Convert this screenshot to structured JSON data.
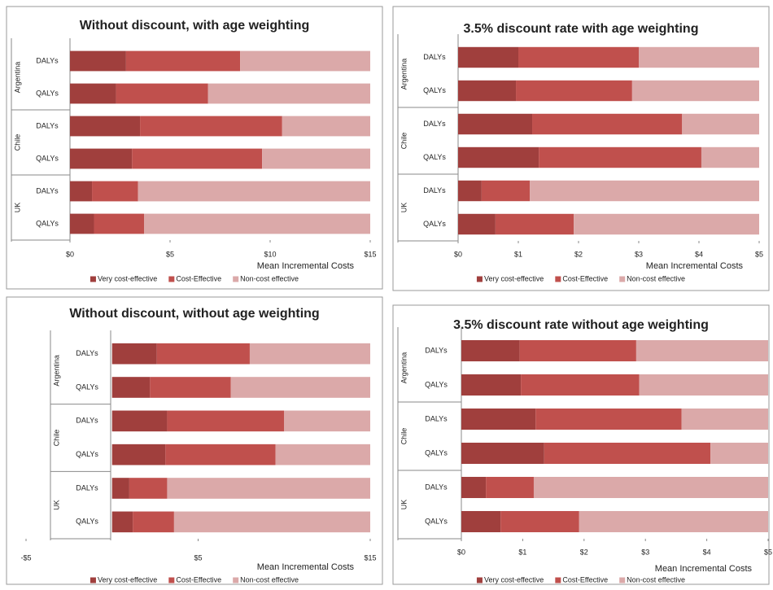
{
  "chart_data": [
    {
      "type": "bar",
      "orientation": "horizontal",
      "stacked": true,
      "title": "Without discount, with age weighting",
      "groups": [
        "Argentina",
        "Chile",
        "UK"
      ],
      "categories": [
        "DALYs",
        "QALYs",
        "DALYs",
        "QALYs",
        "DALYs",
        "QALYs"
      ],
      "series": [
        {
          "name": "Very cost-effective",
          "color": "#a03f3d",
          "values": [
            2.8,
            2.3,
            3.5,
            3.1,
            1.1,
            1.2
          ]
        },
        {
          "name": "Cost-Effective",
          "color": "#c0504d",
          "values": [
            5.7,
            4.6,
            7.1,
            6.5,
            2.3,
            2.5
          ]
        },
        {
          "name": "Non-cost effective",
          "color": "#dba9a9",
          "values": [
            6.5,
            8.1,
            4.4,
            5.4,
            11.6,
            11.3
          ]
        }
      ],
      "xlabel": "Mean Incremental Costs",
      "xlim": [
        0,
        15
      ],
      "xticks": [
        {
          "value": 0,
          "label": "$0"
        },
        {
          "value": 5,
          "label": "$5"
        },
        {
          "value": 10,
          "label": "$10"
        },
        {
          "value": 15,
          "label": "$15"
        }
      ],
      "grid": false,
      "legend": "bottom"
    },
    {
      "type": "bar",
      "orientation": "horizontal",
      "stacked": true,
      "title": "3.5%  discount rate with age weighting",
      "groups": [
        "Argentina",
        "Chile",
        "UK"
      ],
      "categories": [
        "DALYs",
        "QALYs",
        "DALYs",
        "QALYs",
        "DALYs",
        "QALYs"
      ],
      "series": [
        {
          "name": "Very cost-effective",
          "color": "#a03f3d",
          "values": [
            1.0,
            0.96,
            1.23,
            1.34,
            0.39,
            0.62
          ]
        },
        {
          "name": "Cost-Effective",
          "color": "#c0504d",
          "values": [
            2.0,
            1.93,
            2.49,
            2.7,
            0.8,
            1.3
          ]
        },
        {
          "name": "Non-cost effective",
          "color": "#dba9a9",
          "values": [
            2.0,
            2.11,
            1.28,
            0.96,
            3.81,
            3.08
          ]
        }
      ],
      "xlabel": "Mean Incremental Costs",
      "xlim": [
        0,
        5
      ],
      "xticks": [
        {
          "value": 0,
          "label": "$0"
        },
        {
          "value": 1,
          "label": "$1"
        },
        {
          "value": 2,
          "label": "$2"
        },
        {
          "value": 3,
          "label": "$3"
        },
        {
          "value": 4,
          "label": "$4"
        },
        {
          "value": 5,
          "label": "$5"
        }
      ],
      "grid": false,
      "legend": "bottom"
    },
    {
      "type": "bar",
      "orientation": "horizontal",
      "stacked": true,
      "title": "Without discount, without age weighting",
      "groups": [
        "Argentina",
        "Chile",
        "UK"
      ],
      "categories": [
        "DALYs",
        "QALYs",
        "DALYs",
        "QALYs",
        "DALYs",
        "QALYs"
      ],
      "series": [
        {
          "name": "Very cost-effective",
          "color": "#a03f3d",
          "values": [
            2.6,
            2.2,
            3.2,
            3.1,
            1.0,
            1.2
          ]
        },
        {
          "name": "Cost-Effective",
          "color": "#c0504d",
          "values": [
            5.4,
            4.7,
            6.8,
            6.4,
            2.2,
            2.4
          ]
        },
        {
          "name": "Non-cost effective",
          "color": "#dba9a9",
          "values": [
            7.0,
            8.1,
            5.0,
            5.5,
            11.8,
            11.4
          ]
        }
      ],
      "xlabel": "Mean Incremental Costs",
      "xlim": [
        -5,
        15
      ],
      "xticks": [
        {
          "value": -5,
          "label": "-$5"
        },
        {
          "value": 5,
          "label": "$5"
        },
        {
          "value": 15,
          "label": "$15"
        }
      ],
      "grid": false,
      "legend": "bottom"
    },
    {
      "type": "bar",
      "orientation": "horizontal",
      "stacked": true,
      "title": "3.5% discount rate without age weighting",
      "groups": [
        "Argentina",
        "Chile",
        "UK"
      ],
      "categories": [
        "DALYs",
        "QALYs",
        "DALYs",
        "QALYs",
        "DALYs",
        "QALYs"
      ],
      "series": [
        {
          "name": "Very cost-effective",
          "color": "#a03f3d",
          "values": [
            0.95,
            0.97,
            1.21,
            1.35,
            0.4,
            0.64
          ]
        },
        {
          "name": "Cost-Effective",
          "color": "#c0504d",
          "values": [
            1.9,
            1.93,
            2.38,
            2.71,
            0.78,
            1.28
          ]
        },
        {
          "name": "Non-cost effective",
          "color": "#dba9a9",
          "values": [
            2.15,
            2.1,
            1.41,
            0.94,
            3.82,
            3.08
          ]
        }
      ],
      "xlabel": "Mean Incremental Costs",
      "xlim": [
        0,
        5
      ],
      "xticks": [
        {
          "value": 0,
          "label": "$0"
        },
        {
          "value": 1,
          "label": "$1"
        },
        {
          "value": 2,
          "label": "$2"
        },
        {
          "value": 3,
          "label": "$3"
        },
        {
          "value": 4,
          "label": "$4"
        },
        {
          "value": 5,
          "label": "$5"
        }
      ],
      "grid": false,
      "legend": "bottom"
    }
  ]
}
